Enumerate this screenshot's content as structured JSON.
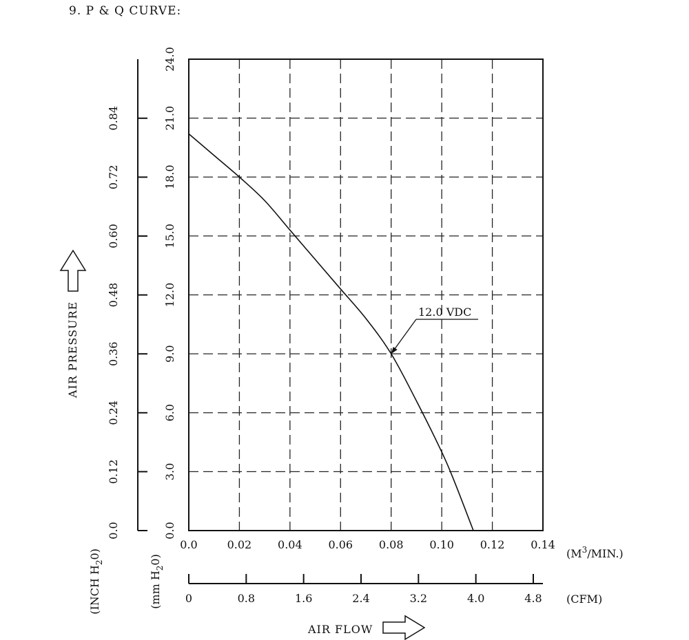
{
  "heading": "9. P & Q CURVE:",
  "chart_data": {
    "type": "line",
    "x_axis_primary": {
      "label": "(M³/MIN.)",
      "unit_base": "(M",
      "unit_sup": "3",
      "unit_tail": "/MIN.)",
      "range": [
        0,
        0.14
      ],
      "ticks": [
        "0.0",
        "0.02",
        "0.04",
        "0.06",
        "0.08",
        "0.10",
        "0.12",
        "0.14"
      ]
    },
    "x_axis_secondary": {
      "label": "(CFM)",
      "ticks": [
        "0",
        "0.8",
        "1.6",
        "2.4",
        "3.2",
        "4.0",
        "4.8"
      ]
    },
    "y_axis_primary": {
      "unit_base": "(mm H",
      "unit_sub": "2",
      "unit_tail": "0)",
      "range": [
        0,
        24
      ],
      "ticks": [
        "0.0",
        "3.0",
        "6.0",
        "9.0",
        "12.0",
        "15.0",
        "18.0",
        "21.0",
        "24.0"
      ]
    },
    "y_axis_secondary": {
      "unit_base": "(INCH H",
      "unit_sub": "2",
      "unit_tail": "0)",
      "ticks": [
        "0.0",
        "0.12",
        "0.24",
        "0.36",
        "0.48",
        "0.60",
        "0.72",
        "0.84"
      ]
    },
    "y_title": "AIR PRESSURE",
    "x_title": "AIR FLOW",
    "grid": true,
    "grid_style": "dashed",
    "series": [
      {
        "name": "12.0 VDC",
        "x": [
          0.0,
          0.01,
          0.02,
          0.03,
          0.04,
          0.05,
          0.06,
          0.07,
          0.08,
          0.09,
          0.1,
          0.105,
          0.1125
        ],
        "y": [
          20.2,
          19.1,
          18.0,
          16.8,
          15.3,
          13.8,
          12.3,
          10.8,
          9.0,
          6.6,
          4.0,
          2.5,
          0.0
        ]
      }
    ],
    "annotations": [
      {
        "text": "12.0 VDC",
        "target_x": 0.08,
        "target_y": 9.0
      }
    ]
  }
}
